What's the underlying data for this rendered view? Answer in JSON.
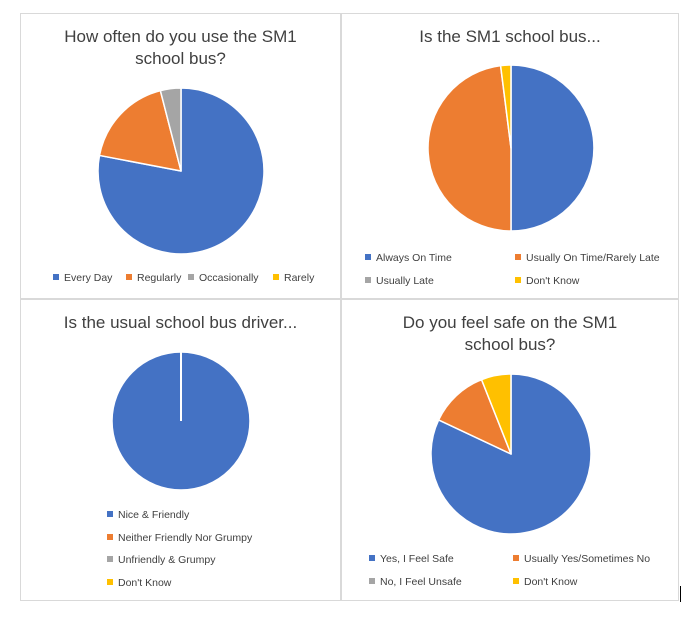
{
  "colors": {
    "blue": "#4472c4",
    "orange": "#ed7d31",
    "gray": "#a5a5a5",
    "yellow": "#ffc000"
  },
  "chart_data": [
    {
      "type": "pie",
      "title": "How often do you use the SM1\nschool bus?",
      "categories": [
        "Every Day",
        "Regularly",
        "Occasionally",
        "Rarely"
      ],
      "values": [
        78,
        18,
        4,
        0
      ],
      "colors": [
        "#4472c4",
        "#ed7d31",
        "#a5a5a5",
        "#ffc000"
      ],
      "legend_position": "bottom"
    },
    {
      "type": "pie",
      "title": "Is the SM1 school bus...",
      "categories": [
        "Always On Time",
        "Usually On Time/Rarely Late",
        "Usually Late",
        "Don't Know"
      ],
      "values": [
        50,
        48,
        0,
        2
      ],
      "colors": [
        "#4472c4",
        "#ed7d31",
        "#a5a5a5",
        "#ffc000"
      ],
      "legend_position": "bottom"
    },
    {
      "type": "pie",
      "title": "Is the usual school bus driver...",
      "categories": [
        "Nice & Friendly",
        "Neither Friendly Nor Grumpy",
        "Unfriendly & Grumpy",
        "Don't Know"
      ],
      "values": [
        100,
        0,
        0,
        0
      ],
      "colors": [
        "#4472c4",
        "#ed7d31",
        "#a5a5a5",
        "#ffc000"
      ],
      "legend_position": "bottom"
    },
    {
      "type": "pie",
      "title": "Do you feel safe on the SM1\nschool bus?",
      "categories": [
        "Yes, I Feel Safe",
        "Usually Yes/Sometimes No",
        "No, I Feel Unsafe",
        "Don't Know"
      ],
      "values": [
        82,
        12,
        0,
        6
      ],
      "colors": [
        "#4472c4",
        "#ed7d31",
        "#a5a5a5",
        "#ffc000"
      ],
      "legend_position": "bottom"
    }
  ]
}
